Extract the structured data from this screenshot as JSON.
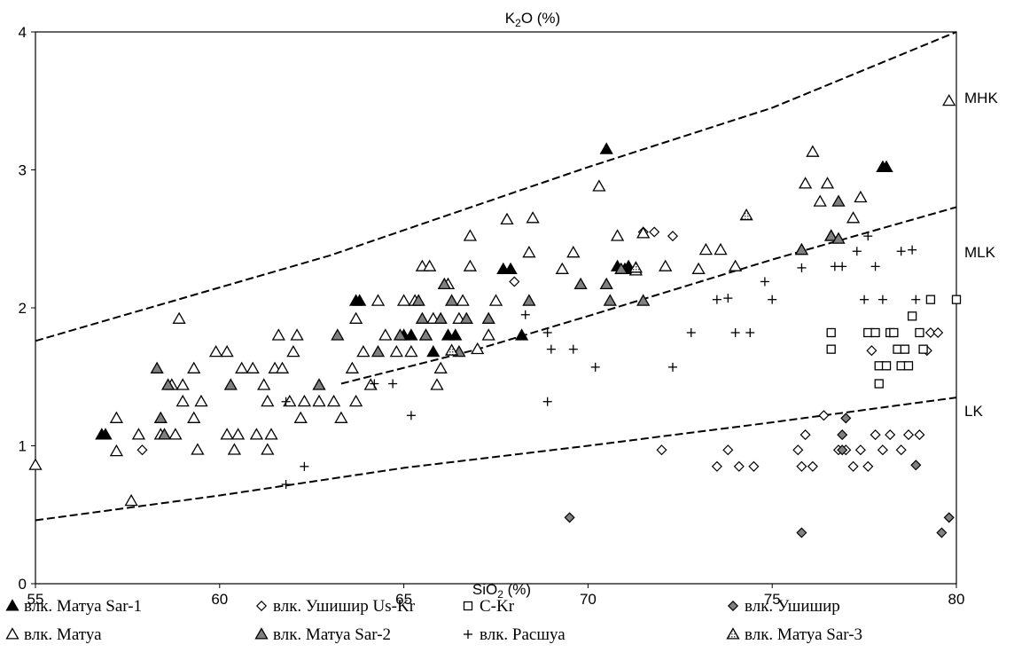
{
  "chart_data": {
    "type": "scatter",
    "y_title": "K2O (%)",
    "x_title": "SiO2 (%)",
    "xlim": [
      55,
      80
    ],
    "ylim": [
      0,
      4
    ],
    "x_ticks": [
      "55",
      "60",
      "65",
      "70",
      "75",
      "80"
    ],
    "y_ticks": [
      "0",
      "1",
      "2",
      "3",
      "4"
    ],
    "grid": false,
    "boundaries": [
      {
        "name": "",
        "points": [
          [
            55,
            1.76
          ],
          [
            63,
            2.38
          ],
          [
            70,
            3.02
          ],
          [
            75,
            3.45
          ],
          [
            80,
            4.0
          ]
        ]
      },
      {
        "name": "",
        "points": [
          [
            63.3,
            1.45
          ],
          [
            67,
            1.7
          ],
          [
            70,
            1.94
          ],
          [
            75,
            2.35
          ],
          [
            80,
            2.73
          ]
        ]
      },
      {
        "name": "",
        "points": [
          [
            55,
            0.46
          ],
          [
            60,
            0.64
          ],
          [
            65,
            0.84
          ],
          [
            70,
            1.0
          ],
          [
            75,
            1.17
          ],
          [
            80,
            1.35
          ]
        ]
      }
    ],
    "region_labels": [
      "MHK",
      "MLK",
      "LK"
    ],
    "legend_position": "bottom",
    "series": [
      {
        "name": "влк. Матуа Sar-1",
        "marker": "triangle-filled",
        "points": [
          [
            56.8,
            1.08
          ],
          [
            56.9,
            1.08
          ],
          [
            63.7,
            2.05
          ],
          [
            63.8,
            2.05
          ],
          [
            65.0,
            1.8
          ],
          [
            65.2,
            1.8
          ],
          [
            65.8,
            1.68
          ],
          [
            66.2,
            1.8
          ],
          [
            66.4,
            1.8
          ],
          [
            67.7,
            2.28
          ],
          [
            67.9,
            2.28
          ],
          [
            68.2,
            1.8
          ],
          [
            70.5,
            3.15
          ],
          [
            70.8,
            2.3
          ],
          [
            71.0,
            2.28
          ],
          [
            71.1,
            2.3
          ],
          [
            78.0,
            3.02
          ],
          [
            78.1,
            3.02
          ]
        ]
      },
      {
        "name": "влк. Ушишир Us-Kr",
        "marker": "diamond-open",
        "points": [
          [
            57.9,
            0.97
          ],
          [
            68.0,
            2.19
          ],
          [
            71.5,
            2.55
          ],
          [
            71.8,
            2.55
          ],
          [
            72.3,
            2.52
          ],
          [
            72.0,
            0.97
          ],
          [
            73.5,
            0.85
          ],
          [
            73.8,
            0.97
          ],
          [
            74.1,
            0.85
          ],
          [
            74.5,
            0.85
          ],
          [
            75.7,
            0.97
          ],
          [
            75.8,
            0.85
          ],
          [
            75.9,
            1.08
          ],
          [
            76.1,
            0.85
          ],
          [
            76.4,
            1.22
          ],
          [
            76.8,
            0.97
          ],
          [
            77.0,
            0.97
          ],
          [
            77.2,
            0.85
          ],
          [
            77.4,
            0.97
          ],
          [
            77.6,
            0.85
          ],
          [
            77.8,
            1.08
          ],
          [
            78.0,
            0.97
          ],
          [
            78.2,
            1.08
          ],
          [
            78.5,
            0.97
          ],
          [
            78.7,
            1.08
          ],
          [
            79.0,
            1.08
          ],
          [
            79.3,
            1.82
          ],
          [
            79.5,
            1.82
          ],
          [
            79.2,
            1.69
          ],
          [
            77.7,
            1.69
          ]
        ]
      },
      {
        "name": "C-Kr",
        "marker": "square-open",
        "points": [
          [
            76.6,
            1.82
          ],
          [
            76.6,
            1.7
          ],
          [
            77.6,
            1.82
          ],
          [
            77.8,
            1.82
          ],
          [
            77.9,
            1.45
          ],
          [
            77.9,
            1.58
          ],
          [
            78.1,
            1.58
          ],
          [
            78.2,
            1.82
          ],
          [
            78.3,
            1.82
          ],
          [
            78.4,
            1.7
          ],
          [
            78.5,
            1.58
          ],
          [
            78.6,
            1.7
          ],
          [
            78.7,
            1.58
          ],
          [
            78.8,
            1.94
          ],
          [
            79.0,
            1.82
          ],
          [
            79.1,
            1.7
          ],
          [
            79.3,
            2.06
          ],
          [
            80.0,
            2.06
          ]
        ]
      },
      {
        "name": "влк. Ушишир",
        "marker": "diamond-filled",
        "points": [
          [
            69.5,
            0.48
          ],
          [
            75.8,
            0.37
          ],
          [
            77.0,
            1.2
          ],
          [
            78.9,
            0.86
          ],
          [
            79.6,
            0.37
          ],
          [
            79.8,
            0.48
          ],
          [
            76.9,
            1.08
          ],
          [
            76.9,
            0.97
          ]
        ]
      },
      {
        "name": "влк. Матуа",
        "marker": "triangle-open",
        "points": [
          [
            55.0,
            0.86
          ],
          [
            57.2,
            1.2
          ],
          [
            57.2,
            0.96
          ],
          [
            57.6,
            0.6
          ],
          [
            57.8,
            1.08
          ],
          [
            58.4,
            1.08
          ],
          [
            58.8,
            1.08
          ],
          [
            58.7,
            1.44
          ],
          [
            59.0,
            1.44
          ],
          [
            59.0,
            1.32
          ],
          [
            59.3,
            1.56
          ],
          [
            59.5,
            1.32
          ],
          [
            59.4,
            0.97
          ],
          [
            59.3,
            1.2
          ],
          [
            59.9,
            1.68
          ],
          [
            60.2,
            1.68
          ],
          [
            60.2,
            1.08
          ],
          [
            60.4,
            0.97
          ],
          [
            60.5,
            1.08
          ],
          [
            60.6,
            1.56
          ],
          [
            60.9,
            1.56
          ],
          [
            61.0,
            1.08
          ],
          [
            61.2,
            1.44
          ],
          [
            61.3,
            1.32
          ],
          [
            61.3,
            0.97
          ],
          [
            61.4,
            1.08
          ],
          [
            61.5,
            1.56
          ],
          [
            61.6,
            1.8
          ],
          [
            61.7,
            1.56
          ],
          [
            61.9,
            1.32
          ],
          [
            62.0,
            1.68
          ],
          [
            62.1,
            1.8
          ],
          [
            62.3,
            1.32
          ],
          [
            62.2,
            1.2
          ],
          [
            62.7,
            1.32
          ],
          [
            63.1,
            1.32
          ],
          [
            63.3,
            1.2
          ],
          [
            63.6,
            1.56
          ],
          [
            63.7,
            1.92
          ],
          [
            63.9,
            1.68
          ],
          [
            64.1,
            1.44
          ],
          [
            64.3,
            2.05
          ],
          [
            64.5,
            1.8
          ],
          [
            64.8,
            1.68
          ],
          [
            65.0,
            2.05
          ],
          [
            65.2,
            1.68
          ],
          [
            65.3,
            2.05
          ],
          [
            65.5,
            2.3
          ],
          [
            65.6,
            1.8
          ],
          [
            65.7,
            2.3
          ],
          [
            65.9,
            1.44
          ],
          [
            65.8,
            1.92
          ],
          [
            66.0,
            1.56
          ],
          [
            66.2,
            2.17
          ],
          [
            66.5,
            1.92
          ],
          [
            66.6,
            2.05
          ],
          [
            66.8,
            2.3
          ],
          [
            67.0,
            1.7
          ],
          [
            67.3,
            1.8
          ],
          [
            67.5,
            2.05
          ],
          [
            67.8,
            2.64
          ],
          [
            68.4,
            2.4
          ],
          [
            68.5,
            2.65
          ],
          [
            69.3,
            2.28
          ],
          [
            69.6,
            2.4
          ],
          [
            70.3,
            2.88
          ],
          [
            70.8,
            2.52
          ],
          [
            71.3,
            2.27
          ],
          [
            71.5,
            2.54
          ],
          [
            72.1,
            2.3
          ],
          [
            73.0,
            2.28
          ],
          [
            73.2,
            2.42
          ],
          [
            73.6,
            2.42
          ],
          [
            74.0,
            2.3
          ],
          [
            75.8,
            2.42
          ],
          [
            75.9,
            2.9
          ],
          [
            76.1,
            3.13
          ],
          [
            76.3,
            2.77
          ],
          [
            76.5,
            2.9
          ],
          [
            76.6,
            2.52
          ],
          [
            77.2,
            2.65
          ],
          [
            77.4,
            2.8
          ],
          [
            79.8,
            3.5
          ],
          [
            58.9,
            1.92
          ],
          [
            66.8,
            2.52
          ],
          [
            63.7,
            1.32
          ]
        ]
      },
      {
        "name": "влк. Матуа Sar-2",
        "marker": "triangle-gray",
        "points": [
          [
            58.3,
            1.56
          ],
          [
            58.4,
            1.2
          ],
          [
            58.5,
            1.08
          ],
          [
            58.6,
            1.44
          ],
          [
            60.3,
            1.44
          ],
          [
            62.7,
            1.44
          ],
          [
            63.2,
            1.8
          ],
          [
            64.3,
            1.68
          ],
          [
            64.9,
            1.8
          ],
          [
            65.4,
            2.05
          ],
          [
            65.5,
            1.92
          ],
          [
            65.6,
            1.8
          ],
          [
            66.0,
            1.92
          ],
          [
            66.1,
            2.17
          ],
          [
            66.3,
            2.05
          ],
          [
            66.5,
            1.68
          ],
          [
            66.7,
            1.92
          ],
          [
            67.3,
            1.92
          ],
          [
            68.4,
            2.05
          ],
          [
            69.8,
            2.17
          ],
          [
            70.5,
            2.17
          ],
          [
            70.6,
            2.05
          ],
          [
            70.9,
            2.28
          ],
          [
            71.5,
            2.05
          ],
          [
            75.8,
            2.42
          ],
          [
            76.6,
            2.52
          ],
          [
            76.8,
            2.77
          ],
          [
            76.8,
            2.5
          ]
        ]
      },
      {
        "name": "влк. Расшуа",
        "marker": "plus",
        "points": [
          [
            61.8,
            0.72
          ],
          [
            62.3,
            0.85
          ],
          [
            61.8,
            1.32
          ],
          [
            64.2,
            1.45
          ],
          [
            64.7,
            1.45
          ],
          [
            65.2,
            1.22
          ],
          [
            68.3,
            1.95
          ],
          [
            68.9,
            1.82
          ],
          [
            69.0,
            1.7
          ],
          [
            69.6,
            1.7
          ],
          [
            70.2,
            1.57
          ],
          [
            68.9,
            1.32
          ],
          [
            72.3,
            1.57
          ],
          [
            72.8,
            1.82
          ],
          [
            73.5,
            2.06
          ],
          [
            73.8,
            2.07
          ],
          [
            74.0,
            1.82
          ],
          [
            74.4,
            1.82
          ],
          [
            74.8,
            2.19
          ],
          [
            75.0,
            2.06
          ],
          [
            75.8,
            2.29
          ],
          [
            76.7,
            2.3
          ],
          [
            76.9,
            2.3
          ],
          [
            77.3,
            2.41
          ],
          [
            77.5,
            2.06
          ],
          [
            77.6,
            2.52
          ],
          [
            77.8,
            2.3
          ],
          [
            78.0,
            2.06
          ],
          [
            78.5,
            2.41
          ],
          [
            78.8,
            2.42
          ],
          [
            78.9,
            2.06
          ]
        ]
      },
      {
        "name": "влк. Матуа Sar-3",
        "marker": "triangle-halftone",
        "points": [
          [
            66.3,
            1.69
          ],
          [
            71.3,
            2.29
          ],
          [
            74.3,
            2.67
          ]
        ]
      }
    ]
  }
}
